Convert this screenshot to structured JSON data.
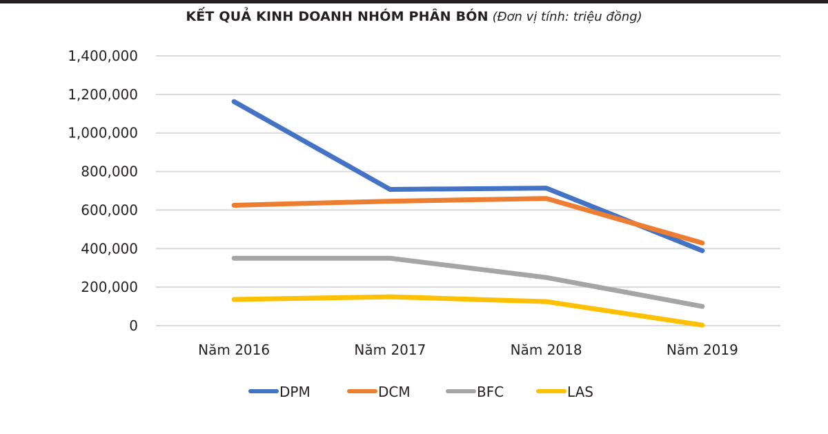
{
  "chart_data": {
    "type": "line",
    "title": "KẾT QUẢ KINH DOANH NHÓM PHÂN BÓN",
    "subtitle": "(Đơn vị tính: triệu đồng)",
    "xlabel": "",
    "ylabel": "",
    "categories": [
      "Năm 2016",
      "Năm 2017",
      "Năm 2018",
      "Năm 2019"
    ],
    "ylim": [
      0,
      1400000
    ],
    "yticks": [
      0,
      200000,
      400000,
      600000,
      800000,
      1000000,
      1200000,
      1400000
    ],
    "ytick_labels": [
      "0",
      "200,000",
      "400,000",
      "600,000",
      "800,000",
      "1,000,000",
      "1,200,000",
      "1,400,000"
    ],
    "grid": true,
    "legend_position": "bottom",
    "series": [
      {
        "name": "DPM",
        "color": "#4472c4",
        "values": [
          1163000,
          707000,
          714000,
          389000
        ]
      },
      {
        "name": "DCM",
        "color": "#ed7d31",
        "values": [
          625000,
          646000,
          660000,
          429000
        ]
      },
      {
        "name": "BFC",
        "color": "#a5a5a5",
        "values": [
          350000,
          350000,
          250000,
          100000
        ]
      },
      {
        "name": "LAS",
        "color": "#ffc000",
        "values": [
          136000,
          150000,
          125000,
          3000
        ]
      }
    ]
  }
}
